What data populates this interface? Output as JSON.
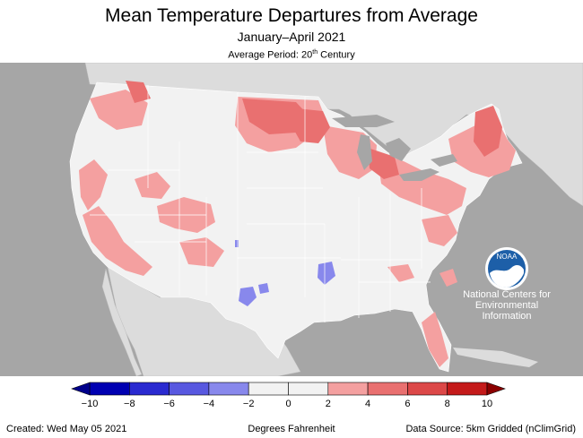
{
  "title": "Mean Temperature Departures from Average",
  "subtitle": "January–April 2021",
  "average_period": {
    "prefix": "Average Period: 20",
    "suffix": "th",
    "tail": " Century"
  },
  "logo": {
    "name": "noaa-logo",
    "text": "NOAA",
    "lines": [
      "National Centers for",
      "Environmental",
      "Information"
    ]
  },
  "colorbar": {
    "ticks": [
      "−10",
      "−8",
      "−6",
      "−4",
      "−2",
      "0",
      "2",
      "4",
      "6",
      "8",
      "10"
    ],
    "colors": [
      "#0000b2",
      "#2a2ad0",
      "#5858e0",
      "#8888ec",
      "#f2f2f2",
      "#f2f2f2",
      "#f4a0a0",
      "#e97070",
      "#dc4848",
      "#c41a1a"
    ],
    "unit": "Degrees Fahrenheit"
  },
  "colors": {
    "ocean": "#a6a6a6",
    "canada": "#dcdcdc",
    "neutral": "#f2f2f2",
    "warm2": "#f4a0a0",
    "warm4": "#e97070",
    "cool": "#8888ec"
  },
  "footer": {
    "created": "Created: Wed May 05 2021",
    "source": "Data Source: 5km Gridded (nClimGrid)"
  }
}
